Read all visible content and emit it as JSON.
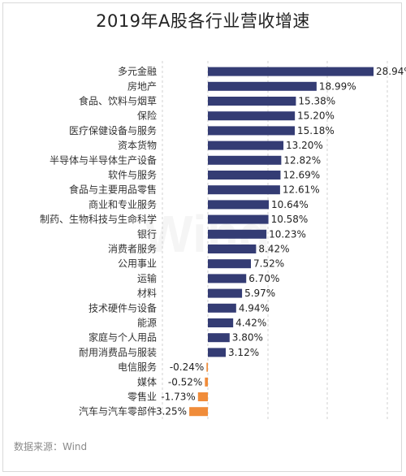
{
  "title": "2019年A股各行业营收增速",
  "source": "数据来源：Wind",
  "colors": {
    "positive": "#343c74",
    "negative": "#f08c3a"
  },
  "chart_data": {
    "type": "bar",
    "orientation": "horizontal",
    "title": "2019年A股各行业营收增速",
    "xlabel": "",
    "ylabel": "",
    "grid": true,
    "xlim": [
      -4,
      30
    ],
    "categories": [
      "多元金融",
      "房地产",
      "食品、饮料与烟草",
      "保险",
      "医疗保健设备与服务",
      "资本货物",
      "半导体与半导体生产设备",
      "软件与服务",
      "食品与主要用品零售",
      "商业和专业服务",
      "制药、生物科技与生命科学",
      "银行",
      "消费者服务",
      "公用事业",
      "运输",
      "材料",
      "技术硬件与设备",
      "能源",
      "家庭与个人用品",
      "耐用消费品与服装",
      "电信服务",
      "媒体",
      "零售业",
      "汽车与汽车零部件"
    ],
    "values": [
      28.94,
      18.99,
      15.38,
      15.2,
      15.18,
      13.2,
      12.82,
      12.69,
      12.61,
      10.64,
      10.58,
      10.23,
      8.42,
      7.52,
      6.7,
      5.97,
      4.94,
      4.42,
      3.8,
      3.12,
      -0.24,
      -0.52,
      -1.73,
      -3.25
    ],
    "value_labels": [
      "28.94%",
      "18.99%",
      "15.38%",
      "15.20%",
      "15.18%",
      "13.20%",
      "12.82%",
      "12.69%",
      "12.61%",
      "10.64%",
      "10.58%",
      "10.23%",
      "8.42%",
      "7.52%",
      "6.70%",
      "5.97%",
      "4.94%",
      "4.42%",
      "3.80%",
      "3.12%",
      "-0.24%",
      "-0.52%",
      "-1.73%",
      "-3.25%"
    ]
  }
}
